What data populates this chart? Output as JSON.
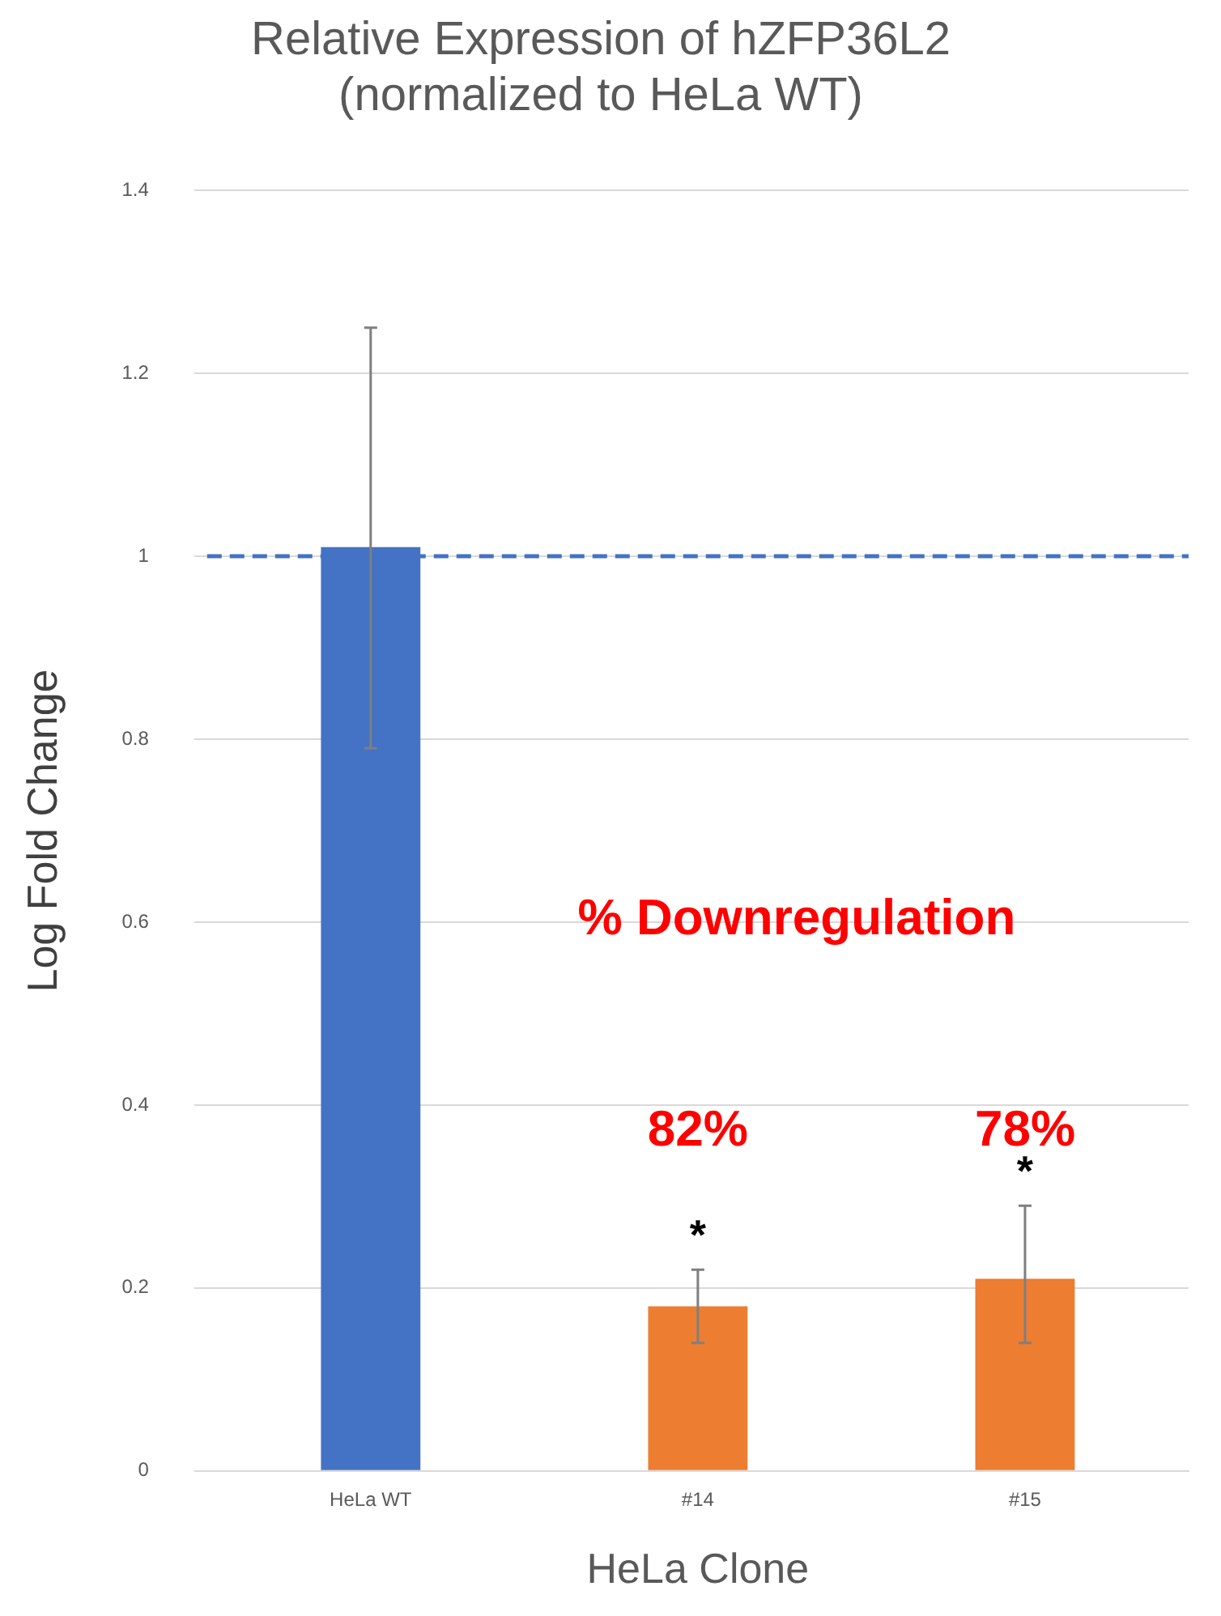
{
  "chart_data": {
    "type": "bar",
    "title": "Relative Expression of hZFP36L2\n(normalized to HeLa WT)",
    "xlabel": "HeLa Clone",
    "ylabel": "Log Fold Change",
    "categories": [
      "HeLa WT",
      "#14",
      "#15"
    ],
    "values": [
      1.01,
      0.18,
      0.21
    ],
    "colors": [
      "#4472c4",
      "#ed7d31",
      "#ed7d31"
    ],
    "errors": [
      [
        0.79,
        1.25
      ],
      [
        0.14,
        0.22
      ],
      [
        0.14,
        0.29
      ]
    ],
    "ylim": [
      0,
      1.4
    ],
    "yticks": [
      0,
      0.2,
      0.4,
      0.6,
      0.8,
      1,
      1.2,
      1.4
    ],
    "grid": "y",
    "legend": false,
    "ref_lines": [
      {
        "axis": "y",
        "value": 1,
        "color": "#4472c4",
        "line_style": "dashed"
      }
    ],
    "annotations": [
      "% Downregulation",
      "82%",
      "78%",
      "*",
      "*"
    ]
  }
}
